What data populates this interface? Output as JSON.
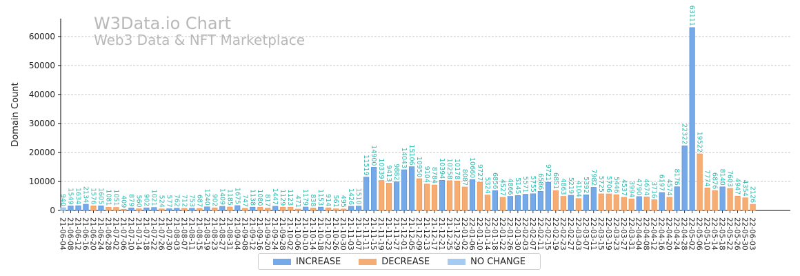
{
  "watermark": {
    "title": "W3Data.io Chart",
    "subtitle": "Web3 Data & NFT Marketplace"
  },
  "legend": {
    "increase": "INCREASE",
    "decrease": "DECREASE",
    "no_change": "NO CHANGE"
  },
  "colors": {
    "increase": "#76a9e8",
    "decrease": "#f6ad73",
    "no_change": "#a4ccf2",
    "label": "#2bbcb0",
    "grid": "#b5b5b5"
  },
  "chart_data": {
    "type": "bar",
    "title": "W3Data.io Chart",
    "subtitle": "Web3 Data & NFT Marketplace",
    "xlabel": "",
    "ylabel": "Domain Count",
    "ylim": [
      0,
      66000
    ],
    "yticks": [
      0,
      10000,
      20000,
      30000,
      40000,
      50000,
      60000
    ],
    "grid": "y-dashed",
    "legend_position": "bottom-center",
    "categories": [
      "21-06-04",
      "21-06-08",
      "21-06-12",
      "21-06-16",
      "21-06-20",
      "21-06-24",
      "21-06-28",
      "21-07-02",
      "21-07-06",
      "21-07-10",
      "21-07-14",
      "21-07-18",
      "21-07-22",
      "21-07-26",
      "21-07-30",
      "21-08-03",
      "21-08-07",
      "21-08-11",
      "21-08-15",
      "21-08-19",
      "21-08-23",
      "21-08-27",
      "21-08-31",
      "21-09-04",
      "21-09-08",
      "21-09-12",
      "21-09-16",
      "21-09-20",
      "21-09-24",
      "21-09-28",
      "21-10-02",
      "21-10-06",
      "21-10-10",
      "21-10-14",
      "21-10-18",
      "21-10-22",
      "21-10-26",
      "21-10-30",
      "21-11-03",
      "21-11-07",
      "21-11-11",
      "21-11-15",
      "21-11-19",
      "21-11-23",
      "21-11-27",
      "21-12-01",
      "21-12-05",
      "21-12-09",
      "21-12-13",
      "21-12-17",
      "21-12-21",
      "21-12-25",
      "21-12-29",
      "22-01-02",
      "22-01-06",
      "22-01-10",
      "22-01-14",
      "22-01-18",
      "22-01-22",
      "22-01-26",
      "22-01-30",
      "22-02-03",
      "22-02-07",
      "22-02-11",
      "22-02-15",
      "22-02-19",
      "22-02-23",
      "22-02-27",
      "22-03-03",
      "22-03-07",
      "22-03-11",
      "22-03-15",
      "22-03-19",
      "22-03-23",
      "22-03-27",
      "22-03-31",
      "22-04-04",
      "22-04-08",
      "22-04-12",
      "22-04-16",
      "22-04-20",
      "22-04-24",
      "22-04-28",
      "22-05-02",
      "22-05-06",
      "22-05-10",
      "22-05-14",
      "22-05-18",
      "22-05-22",
      "22-05-26",
      "22-05-30",
      "22-06-03"
    ],
    "tick_labels": [
      "21-06-04",
      "21-06-08",
      "21-06-12",
      "21-06-16",
      "21-06-20",
      "21-06-24",
      "21-06-28",
      "21-07-02",
      "21-07-06",
      "21-07-10",
      "21-07-14",
      "21-07-18",
      "21-07-22",
      "21-07-26",
      "21-07-30",
      "21-08-03",
      "21-08-07",
      "21-08-11",
      "21-08-15",
      "21-08-19",
      "21-08-23",
      "21-08-27",
      "21-08-31",
      "21-09-04",
      "21-09-08",
      "21-09-12",
      "21-09-16",
      "21-09-20",
      "21-09-24",
      "21-09-28",
      "21-10-02",
      "21-10-06",
      "21-10-10",
      "21-10-14",
      "21-10-18",
      "21-10-22",
      "21-10-26",
      "21-10-30",
      "21-11-03",
      "21-11-07",
      "21-11-11",
      "21-11-15",
      "21-11-19",
      "21-11-23",
      "21-11-27",
      "21-12-01",
      "21-12-05",
      "21-12-09",
      "21-12-13",
      "21-12-17",
      "21-12-21",
      "21-12-25",
      "21-12-29",
      "22-01-02",
      "22-01-06",
      "22-01-10",
      "22-01-14",
      "22-01-18",
      "22-01-22",
      "22-01-26",
      "22-01-30",
      "22-02-03",
      "22-02-07",
      "22-02-11",
      "22-02-15",
      "22-02-19",
      "22-02-23",
      "22-02-27",
      "22-03-03",
      "22-03-07",
      "22-03-11",
      "22-03-15",
      "22-03-19",
      "22-03-23",
      "22-03-27",
      "22-03-31",
      "22-04-04",
      "22-04-08",
      "22-04-12",
      "22-04-16",
      "22-04-20",
      "22-04-24",
      "22-04-28",
      "22-05-02",
      "22-05-06",
      "22-05-10",
      "22-05-14",
      "22-05-18",
      "22-05-22",
      "22-05-26",
      "22-05-30",
      "22-06-03"
    ],
    "values": [
      940,
      1549,
      1634,
      2134,
      1576,
      1605,
      1081,
      1051,
      409,
      879,
      560,
      902,
      1021,
      524,
      577,
      762,
      712,
      753,
      687,
      1240,
      902,
      1409,
      1185,
      1675,
      747,
      1138,
      1080,
      817,
      1447,
      1129,
      1123,
      471,
      1179,
      838,
      1153,
      914,
      561,
      495,
      1426,
      1510,
      11519,
      14900,
      10339,
      9413,
      9882,
      14043,
      15106,
      10950,
      9104,
      8784,
      10394,
      10258,
      10178,
      8087,
      10660,
      9727,
      5324,
      6856,
      4527,
      4866,
      5145,
      5571,
      5755,
      6586,
      9721,
      6851,
      4863,
      5219,
      4104,
      5392,
      7982,
      5725,
      5706,
      5446,
      4537,
      3994,
      4790,
      4674,
      3716,
      6197,
      4574,
      8176,
      22322,
      63111,
      19522,
      7774,
      6876,
      8140,
      7603,
      4947,
      4354,
      2126
    ],
    "categories_type": [
      "nochange",
      "inc",
      "inc",
      "inc",
      "dec",
      "inc",
      "dec",
      "dec",
      "dec",
      "inc",
      "dec",
      "inc",
      "inc",
      "dec",
      "inc",
      "inc",
      "dec",
      "inc",
      "dec",
      "inc",
      "dec",
      "inc",
      "dec",
      "inc",
      "dec",
      "inc",
      "dec",
      "dec",
      "inc",
      "dec",
      "dec",
      "dec",
      "inc",
      "dec",
      "inc",
      "dec",
      "dec",
      "dec",
      "inc",
      "inc",
      "inc",
      "inc",
      "dec",
      "dec",
      "inc",
      "inc",
      "inc",
      "dec",
      "dec",
      "dec",
      "inc",
      "dec",
      "dec",
      "dec",
      "inc",
      "dec",
      "dec",
      "inc",
      "dec",
      "inc",
      "inc",
      "inc",
      "inc",
      "inc",
      "inc",
      "dec",
      "dec",
      "inc",
      "dec",
      "inc",
      "inc",
      "dec",
      "dec",
      "dec",
      "dec",
      "dec",
      "inc",
      "dec",
      "dec",
      "inc",
      "dec",
      "inc",
      "inc",
      "inc",
      "dec",
      "dec",
      "dec",
      "inc",
      "dec",
      "dec",
      "dec",
      "dec"
    ]
  }
}
